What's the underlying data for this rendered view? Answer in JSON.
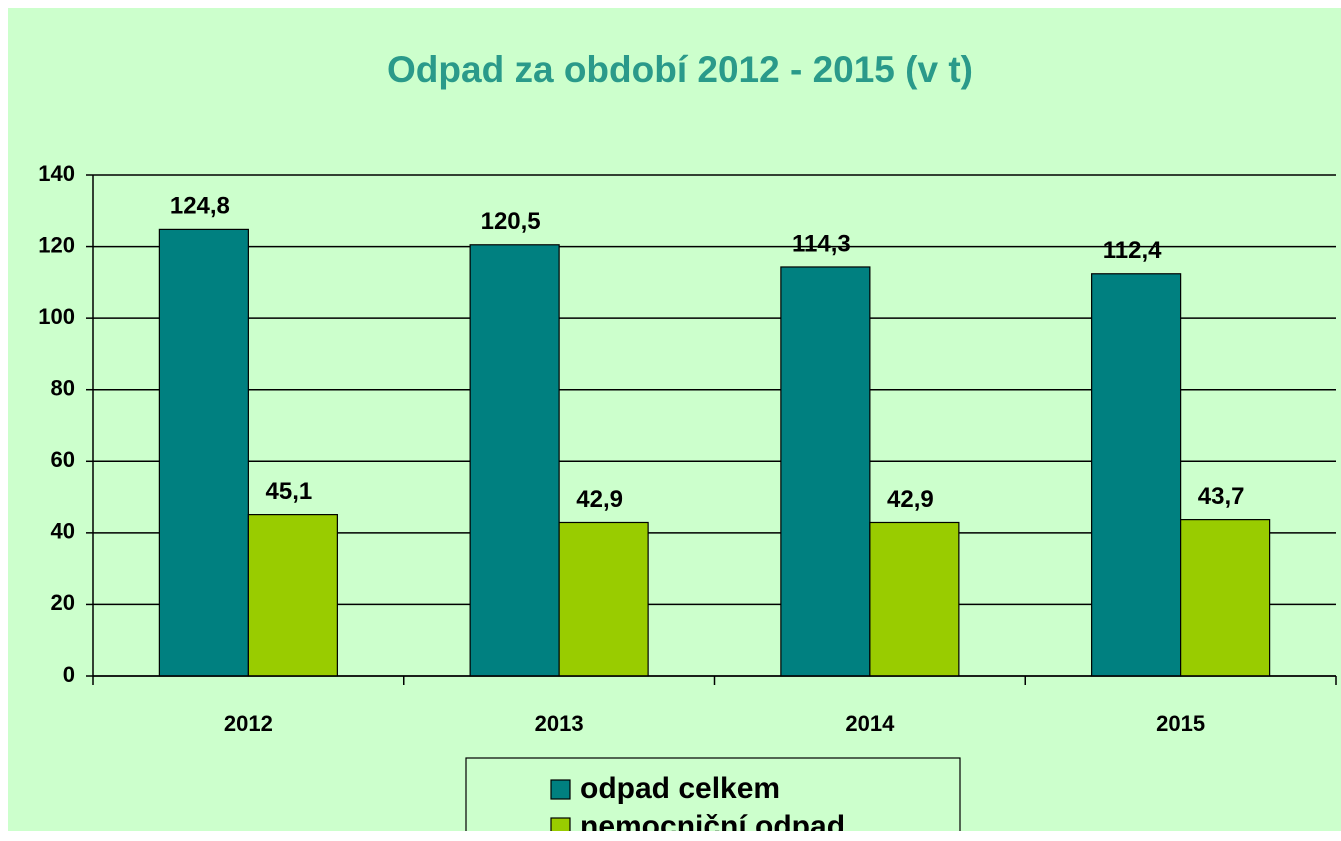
{
  "chart_data": {
    "type": "bar",
    "title": "Odpad za období 2012 - 2015 (v t)",
    "categories": [
      "2012",
      "2013",
      "2014",
      "2015"
    ],
    "series": [
      {
        "name": "odpad celkem",
        "color": "#008080",
        "values": [
          124.8,
          120.5,
          114.3,
          112.4
        ],
        "value_labels": [
          "124,8",
          "120,5",
          "114,3",
          "112,4"
        ]
      },
      {
        "name": "nemocniční odpad",
        "color": "#99cc00",
        "values": [
          45.1,
          42.9,
          42.9,
          43.7
        ],
        "value_labels": [
          "45,1",
          "42,9",
          "42,9",
          "43,7"
        ]
      }
    ],
    "ylim": [
      0,
      140
    ],
    "yticks": [
      0,
      20,
      40,
      60,
      80,
      100,
      120,
      140
    ],
    "grid": true
  }
}
